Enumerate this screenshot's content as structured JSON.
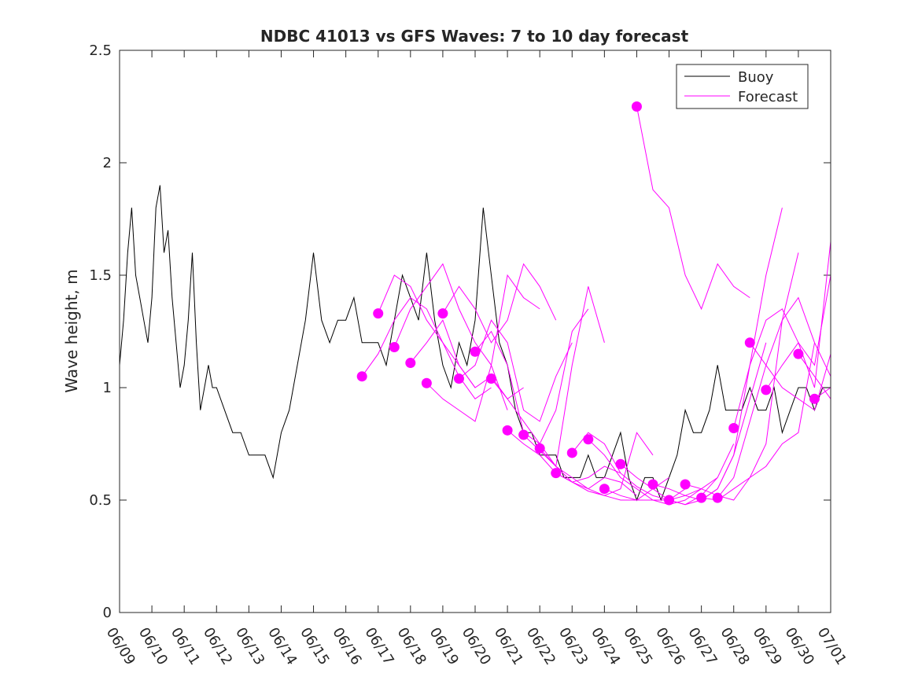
{
  "chart_data": {
    "type": "line",
    "title": "NDBC 41013 vs GFS Waves: 7 to 10 day forecast",
    "xlabel": "",
    "ylabel": "Wave height, m",
    "ylim": [
      0,
      2.5
    ],
    "yticks": [
      0,
      0.5,
      1,
      1.5,
      2,
      2.5
    ],
    "ytick_labels": [
      "0",
      "0.5",
      "1",
      "1.5",
      "2",
      "2.5"
    ],
    "xlim": [
      "06/09",
      "07/01"
    ],
    "xtick_labels": [
      "06/09",
      "06/10",
      "06/11",
      "06/12",
      "06/13",
      "06/14",
      "06/15",
      "06/16",
      "06/17",
      "06/18",
      "06/19",
      "06/20",
      "06/21",
      "06/22",
      "06/23",
      "06/24",
      "06/25",
      "06/26",
      "06/27",
      "06/28",
      "06/29",
      "06/30",
      "07/01"
    ],
    "legend_position": "top-right",
    "colors": {
      "buoy": "#000000",
      "forecast": "#ff00ff"
    },
    "series": [
      {
        "name": "Buoy",
        "x": [
          "06/09 00:00",
          "06/09 03:00",
          "06/09 06:00",
          "06/09 09:00",
          "06/09 12:00",
          "06/09 15:00",
          "06/09 18:00",
          "06/09 21:00",
          "06/10 00:00",
          "06/10 03:00",
          "06/10 06:00",
          "06/10 09:00",
          "06/10 12:00",
          "06/10 15:00",
          "06/10 18:00",
          "06/10 21:00",
          "06/11 00:00",
          "06/11 03:00",
          "06/11 06:00",
          "06/11 09:00",
          "06/11 12:00",
          "06/11 15:00",
          "06/11 18:00",
          "06/11 21:00",
          "06/12 00:00",
          "06/12 06:00",
          "06/12 12:00",
          "06/12 18:00",
          "06/13 00:00",
          "06/13 06:00",
          "06/13 12:00",
          "06/13 18:00",
          "06/14 00:00",
          "06/14 06:00",
          "06/14 12:00",
          "06/14 18:00",
          "06/15 00:00",
          "06/15 06:00",
          "06/15 12:00",
          "06/15 18:00",
          "06/16 00:00",
          "06/16 06:00",
          "06/16 12:00",
          "06/16 18:00",
          "06/17 00:00",
          "06/17 06:00",
          "06/17 12:00",
          "06/17 18:00",
          "06/18 00:00",
          "06/18 06:00",
          "06/18 12:00",
          "06/18 18:00",
          "06/19 00:00",
          "06/19 06:00",
          "06/19 12:00",
          "06/19 18:00",
          "06/20 00:00",
          "06/20 06:00",
          "06/20 12:00",
          "06/20 18:00",
          "06/21 00:00",
          "06/21 06:00",
          "06/21 12:00",
          "06/21 18:00",
          "06/22 00:00",
          "06/22 06:00",
          "06/22 12:00",
          "06/22 18:00",
          "06/23 00:00",
          "06/23 06:00",
          "06/23 12:00",
          "06/23 18:00",
          "06/24 00:00",
          "06/24 06:00",
          "06/24 12:00",
          "06/24 18:00",
          "06/25 00:00",
          "06/25 06:00",
          "06/25 12:00",
          "06/25 18:00",
          "06/26 00:00",
          "06/26 06:00",
          "06/26 12:00",
          "06/26 18:00",
          "06/27 00:00",
          "06/27 06:00",
          "06/27 12:00",
          "06/27 18:00",
          "06/28 00:00",
          "06/28 06:00",
          "06/28 12:00",
          "06/28 18:00",
          "06/29 00:00",
          "06/29 06:00",
          "06/29 12:00",
          "06/29 18:00",
          "06/30 00:00",
          "06/30 06:00",
          "06/30 12:00",
          "06/30 18:00",
          "07/01 00:00"
        ],
        "values": [
          1.1,
          1.3,
          1.6,
          1.8,
          1.5,
          1.4,
          1.3,
          1.2,
          1.4,
          1.8,
          1.9,
          1.6,
          1.7,
          1.4,
          1.2,
          1.0,
          1.1,
          1.3,
          1.6,
          1.2,
          0.9,
          1.0,
          1.1,
          1.0,
          1.0,
          0.9,
          0.8,
          0.8,
          0.7,
          0.7,
          0.7,
          0.6,
          0.8,
          0.9,
          1.1,
          1.3,
          1.6,
          1.3,
          1.2,
          1.3,
          1.3,
          1.4,
          1.2,
          1.2,
          1.2,
          1.1,
          1.3,
          1.5,
          1.4,
          1.3,
          1.6,
          1.3,
          1.1,
          1.0,
          1.2,
          1.1,
          1.3,
          1.8,
          1.5,
          1.2,
          1.1,
          0.9,
          0.8,
          0.8,
          0.7,
          0.7,
          0.7,
          0.6,
          0.6,
          0.6,
          0.7,
          0.6,
          0.6,
          0.7,
          0.8,
          0.6,
          0.5,
          0.6,
          0.6,
          0.5,
          0.6,
          0.7,
          0.9,
          0.8,
          0.8,
          0.9,
          1.1,
          0.9,
          0.9,
          0.9,
          1.0,
          0.9,
          0.9,
          1.0,
          0.8,
          0.9,
          1.0,
          1.0,
          0.9,
          1.0,
          1.0
        ]
      },
      {
        "name": "Forecast",
        "runs": [
          {
            "x": [
              "06/16 12:00",
              "06/17 00:00",
              "06/17 12:00",
              "06/18 00:00",
              "06/18 12:00",
              "06/19 00:00",
              "06/19 12:00",
              "06/20 00:00"
            ],
            "values": [
              1.05,
              1.15,
              1.3,
              1.4,
              1.35,
              1.2,
              1.1,
              1.0
            ]
          },
          {
            "x": [
              "06/17 00:00",
              "06/17 12:00",
              "06/18 00:00",
              "06/18 12:00",
              "06/19 00:00",
              "06/19 12:00",
              "06/20 00:00",
              "06/20 12:00"
            ],
            "values": [
              1.33,
              1.5,
              1.45,
              1.3,
              1.2,
              1.05,
              0.95,
              1.0
            ]
          },
          {
            "x": [
              "06/17 12:00",
              "06/18 00:00",
              "06/18 12:00",
              "06/19 00:00",
              "06/19 12:00",
              "06/20 00:00",
              "06/20 12:00",
              "06/21 00:00"
            ],
            "values": [
              1.18,
              1.35,
              1.45,
              1.55,
              1.35,
              1.2,
              1.1,
              0.9
            ]
          },
          {
            "x": [
              "06/18 00:00",
              "06/18 12:00",
              "06/19 00:00",
              "06/19 12:00",
              "06/20 00:00",
              "06/20 12:00",
              "06/21 00:00",
              "06/21 12:00"
            ],
            "values": [
              1.11,
              1.2,
              1.3,
              1.1,
              1.0,
              1.05,
              0.95,
              1.0
            ]
          },
          {
            "x": [
              "06/18 12:00",
              "06/19 00:00",
              "06/19 12:00",
              "06/20 00:00",
              "06/20 12:00",
              "06/21 00:00",
              "06/21 12:00",
              "06/22 00:00"
            ],
            "values": [
              1.02,
              0.95,
              0.9,
              0.85,
              1.1,
              1.5,
              1.4,
              1.35
            ]
          },
          {
            "x": [
              "06/19 00:00",
              "06/19 12:00",
              "06/20 00:00",
              "06/20 12:00",
              "06/21 00:00",
              "06/21 12:00",
              "06/22 00:00",
              "06/22 12:00"
            ],
            "values": [
              1.33,
              1.45,
              1.35,
              1.2,
              1.3,
              1.55,
              1.45,
              1.3
            ]
          },
          {
            "x": [
              "06/19 12:00",
              "06/20 00:00",
              "06/20 12:00",
              "06/21 00:00",
              "06/21 12:00",
              "06/22 00:00",
              "06/22 12:00",
              "06/23 00:00"
            ],
            "values": [
              1.04,
              1.1,
              1.3,
              1.2,
              0.9,
              0.85,
              1.05,
              1.2
            ]
          },
          {
            "x": [
              "06/20 00:00",
              "06/20 12:00",
              "06/21 00:00",
              "06/21 12:00",
              "06/22 00:00",
              "06/22 12:00",
              "06/23 00:00",
              "06/23 12:00"
            ],
            "values": [
              1.16,
              1.25,
              1.1,
              0.8,
              0.75,
              0.9,
              1.25,
              1.35
            ]
          },
          {
            "x": [
              "06/20 12:00",
              "06/21 00:00",
              "06/21 12:00",
              "06/22 00:00",
              "06/22 12:00",
              "06/23 00:00",
              "06/23 12:00",
              "06/24 00:00"
            ],
            "values": [
              1.04,
              0.95,
              0.85,
              0.75,
              0.65,
              1.1,
              1.45,
              1.2
            ]
          },
          {
            "x": [
              "06/21 00:00",
              "06/21 12:00",
              "06/22 00:00",
              "06/22 12:00",
              "06/23 00:00",
              "06/23 12:00",
              "06/24 00:00",
              "06/24 12:00"
            ],
            "values": [
              0.81,
              0.75,
              0.7,
              0.62,
              0.58,
              0.6,
              0.65,
              0.62
            ]
          },
          {
            "x": [
              "06/21 12:00",
              "06/22 00:00",
              "06/22 12:00",
              "06/23 00:00",
              "06/23 12:00",
              "06/24 00:00",
              "06/24 12:00",
              "06/25 00:00"
            ],
            "values": [
              0.79,
              0.72,
              0.65,
              0.58,
              0.55,
              0.6,
              0.58,
              0.52
            ]
          },
          {
            "x": [
              "06/22 00:00",
              "06/22 12:00",
              "06/23 00:00",
              "06/23 12:00",
              "06/24 00:00",
              "06/24 12:00",
              "06/25 00:00",
              "06/25 12:00"
            ],
            "values": [
              0.73,
              0.65,
              0.6,
              0.55,
              0.52,
              0.55,
              0.8,
              0.7
            ]
          },
          {
            "x": [
              "06/22 12:00",
              "06/23 00:00",
              "06/23 12:00",
              "06/24 00:00",
              "06/24 12:00",
              "06/25 00:00",
              "06/25 12:00",
              "06/26 00:00"
            ],
            "values": [
              0.62,
              0.58,
              0.54,
              0.52,
              0.5,
              0.5,
              0.55,
              0.6
            ]
          },
          {
            "x": [
              "06/23 00:00",
              "06/23 12:00",
              "06/24 00:00",
              "06/24 12:00",
              "06/25 00:00",
              "06/25 12:00",
              "06/26 00:00",
              "06/26 12:00"
            ],
            "values": [
              0.71,
              0.8,
              0.75,
              0.62,
              0.56,
              0.52,
              0.5,
              0.55
            ]
          },
          {
            "x": [
              "06/23 12:00",
              "06/24 00:00",
              "06/24 12:00",
              "06/25 00:00",
              "06/25 12:00",
              "06/26 00:00",
              "06/26 12:00",
              "06/27 00:00"
            ],
            "values": [
              0.77,
              0.7,
              0.6,
              0.55,
              0.5,
              0.5,
              0.52,
              0.55
            ]
          },
          {
            "x": [
              "06/24 00:00",
              "06/24 12:00",
              "06/25 00:00",
              "06/25 12:00",
              "06/26 00:00",
              "06/26 12:00",
              "06/27 00:00",
              "06/27 12:00"
            ],
            "values": [
              0.55,
              0.52,
              0.5,
              0.5,
              0.48,
              0.5,
              0.55,
              0.6
            ]
          },
          {
            "x": [
              "06/24 12:00",
              "06/25 00:00",
              "06/25 12:00",
              "06/26 00:00",
              "06/26 12:00",
              "06/27 00:00",
              "06/27 12:00",
              "06/28 00:00"
            ],
            "values": [
              0.66,
              0.6,
              0.55,
              0.5,
              0.48,
              0.52,
              0.6,
              0.75
            ]
          },
          {
            "x": [
              "06/25 00:00",
              "06/25 12:00",
              "06/26 00:00",
              "06/26 12:00",
              "06/27 00:00",
              "06/27 12:00",
              "06/28 00:00",
              "06/28 12:00"
            ],
            "values": [
              2.25,
              1.88,
              1.8,
              1.5,
              1.35,
              1.55,
              1.45,
              1.4
            ]
          },
          {
            "x": [
              "06/25 12:00",
              "06/26 00:00",
              "06/26 12:00",
              "06/27 00:00",
              "06/27 12:00",
              "06/28 00:00",
              "06/28 12:00",
              "06/29 00:00"
            ],
            "values": [
              0.57,
              0.55,
              0.52,
              0.5,
              0.55,
              0.7,
              0.95,
              1.2
            ]
          },
          {
            "x": [
              "06/26 00:00",
              "06/26 12:00",
              "06/27 00:00",
              "06/27 12:00",
              "06/28 00:00",
              "06/28 12:00",
              "06/29 00:00",
              "06/29 12:00"
            ],
            "values": [
              0.5,
              0.48,
              0.5,
              0.55,
              0.7,
              1.1,
              1.5,
              1.8
            ]
          },
          {
            "x": [
              "06/26 12:00",
              "06/27 00:00",
              "06/27 12:00",
              "06/28 00:00",
              "06/28 12:00",
              "06/29 00:00",
              "06/29 12:00",
              "06/30 00:00"
            ],
            "values": [
              0.57,
              0.55,
              0.52,
              0.5,
              0.6,
              0.75,
              1.3,
              1.6
            ]
          },
          {
            "x": [
              "06/27 00:00",
              "06/27 12:00",
              "06/28 00:00",
              "06/28 12:00",
              "06/29 00:00",
              "06/29 12:00",
              "06/30 00:00",
              "06/30 12:00"
            ],
            "values": [
              0.51,
              0.5,
              0.55,
              0.6,
              0.65,
              0.75,
              0.8,
              1.2
            ]
          },
          {
            "x": [
              "06/27 12:00",
              "06/28 00:00",
              "06/28 12:00",
              "06/29 00:00",
              "06/29 12:00",
              "06/30 00:00",
              "06/30 12:00",
              "07/01 00:00"
            ],
            "values": [
              0.51,
              0.6,
              0.85,
              1.1,
              1.3,
              1.4,
              1.2,
              1.05
            ]
          },
          {
            "x": [
              "06/28 00:00",
              "06/28 12:00",
              "06/29 00:00",
              "06/29 12:00",
              "06/30 00:00",
              "06/30 12:00",
              "07/01 00:00"
            ],
            "values": [
              0.82,
              1.1,
              1.3,
              1.35,
              1.2,
              1.1,
              1.5
            ]
          },
          {
            "x": [
              "06/28 12:00",
              "06/29 00:00",
              "06/29 12:00",
              "06/30 00:00",
              "06/30 12:00",
              "07/01 00:00"
            ],
            "values": [
              1.2,
              1.1,
              1.0,
              0.95,
              0.9,
              1.15
            ]
          },
          {
            "x": [
              "06/29 00:00",
              "06/29 12:00",
              "06/30 00:00",
              "06/30 12:00",
              "07/01 00:00"
            ],
            "values": [
              0.99,
              1.1,
              1.2,
              1.0,
              1.65
            ]
          },
          {
            "x": [
              "06/30 00:00",
              "06/30 12:00",
              "07/01 00:00"
            ],
            "values": [
              1.15,
              1.05,
              0.95
            ]
          },
          {
            "x": [
              "06/30 12:00",
              "07/01 00:00"
            ],
            "values": [
              0.95,
              1.0
            ]
          }
        ]
      }
    ]
  }
}
